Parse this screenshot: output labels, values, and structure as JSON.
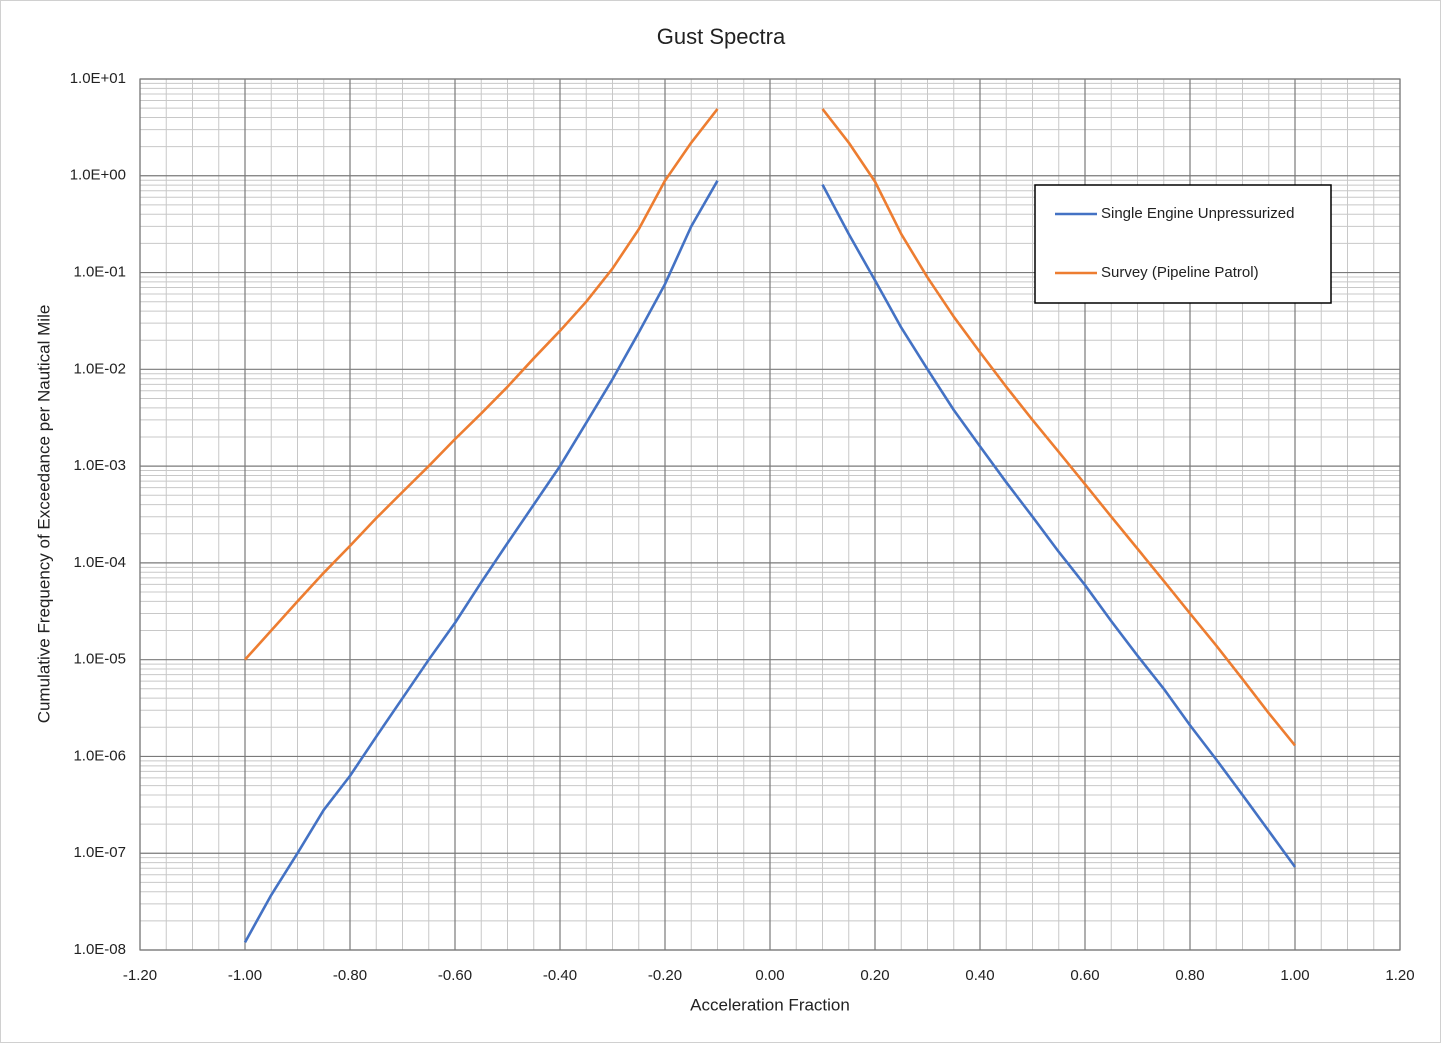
{
  "chart_data": {
    "type": "line",
    "title": "Gust Spectra",
    "x_label": "Acceleration Fraction",
    "y_label": "Cumulative Frequency of Exceedance per Nautical Mile",
    "log_y": true,
    "grid": true,
    "legend": "upper right",
    "x": [
      -1.0,
      -0.95,
      -0.9,
      -0.85,
      -0.8,
      -0.75,
      -0.7,
      -0.65,
      -0.6,
      -0.55,
      -0.5,
      -0.45,
      -0.4,
      -0.35,
      -0.3,
      -0.25,
      -0.2,
      -0.15,
      -0.1,
      0.0,
      0.1,
      0.15,
      0.2,
      0.25,
      0.3,
      0.35,
      0.4,
      0.45,
      0.5,
      0.55,
      0.6,
      0.65,
      0.7,
      0.75,
      0.8,
      0.85,
      0.9,
      0.95,
      1.0
    ],
    "series": [
      {
        "name": "Single Engine Unpressurized",
        "color": "#4472c4",
        "values": [
          1.2e-08,
          3.7e-08,
          1e-07,
          2.8e-07,
          6.3e-07,
          1.6e-06,
          4e-06,
          1e-05,
          2.4e-05,
          6.3e-05,
          0.00016,
          0.0004,
          0.001,
          0.0028,
          0.0079,
          0.024,
          0.076,
          0.3,
          0.89,
          null,
          0.81,
          0.25,
          0.083,
          0.027,
          0.01,
          0.0038,
          0.0016,
          0.00068,
          0.0003,
          0.00013,
          5.9e-05,
          2.5e-05,
          1.1e-05,
          5e-06,
          2.1e-06,
          9.3e-07,
          4e-07,
          1.7e-07,
          7.2e-08
        ]
      },
      {
        "name": "Survey (Pipeline Patrol)",
        "color": "#ed7d31",
        "values": [
          1e-05,
          2e-05,
          4e-05,
          7.9e-05,
          0.00015,
          0.00029,
          0.00054,
          0.001,
          0.0019,
          0.0035,
          0.0066,
          0.013,
          0.025,
          0.05,
          0.11,
          0.28,
          0.89,
          2.2,
          4.9,
          null,
          4.9,
          2.2,
          0.87,
          0.25,
          0.089,
          0.035,
          0.015,
          0.0066,
          0.003,
          0.0014,
          0.00065,
          0.0003,
          0.00014,
          6.5e-05,
          3e-05,
          1.4e-05,
          6.3e-06,
          2.8e-06,
          1.3e-06
        ]
      }
    ],
    "xlim": [
      -1.2,
      1.2
    ],
    "xticks": [
      {
        "value": -1.2,
        "label": "-1.20"
      },
      {
        "value": -1.0,
        "label": "-1.00"
      },
      {
        "value": -0.8,
        "label": "-0.80"
      },
      {
        "value": -0.6,
        "label": "-0.60"
      },
      {
        "value": -0.4,
        "label": "-0.40"
      },
      {
        "value": -0.2,
        "label": "-0.20"
      },
      {
        "value": 0,
        "label": "0.00"
      },
      {
        "value": 0.2,
        "label": "0.20"
      },
      {
        "value": 0.4,
        "label": "0.40"
      },
      {
        "value": 0.6,
        "label": "0.60"
      },
      {
        "value": 0.8,
        "label": "0.80"
      },
      {
        "value": 1.0,
        "label": "1.00"
      },
      {
        "value": 1.2,
        "label": "1.20"
      }
    ],
    "ylim": [
      1e-08,
      10
    ],
    "yticks": [
      {
        "value": 1e-08,
        "label": "1.0E-08"
      },
      {
        "value": 1e-07,
        "label": "1.0E-07"
      },
      {
        "value": 1e-06,
        "label": "1.0E-06"
      },
      {
        "value": 1e-05,
        "label": "1.0E-05"
      },
      {
        "value": 0.0001,
        "label": "1.0E-04"
      },
      {
        "value": 0.001,
        "label": "1.0E-03"
      },
      {
        "value": 0.01,
        "label": "1.0E-02"
      },
      {
        "value": 0.1,
        "label": "1.0E-01"
      },
      {
        "value": 1,
        "label": "1.0E+00"
      },
      {
        "value": 10,
        "label": "1.0E+01"
      }
    ]
  }
}
